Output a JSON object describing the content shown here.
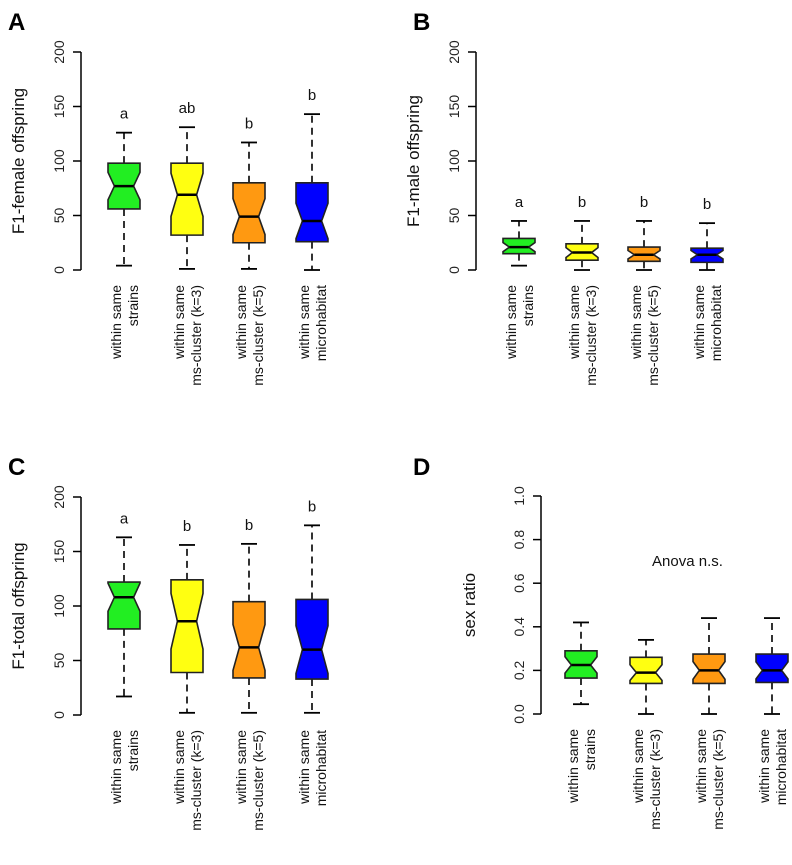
{
  "chart_data": [
    {
      "type": "boxplot",
      "panel": "A",
      "ylabel": "F1-female offspring",
      "ylim": [
        0,
        200
      ],
      "yticks": [
        "0",
        "50",
        "100",
        "150",
        "200"
      ],
      "categories": [
        [
          "within same",
          "strains"
        ],
        [
          "within same",
          "ms-cluster (k=3)"
        ],
        [
          "within same",
          "ms-cluster (k=5)"
        ],
        [
          "within same",
          "microhabitat"
        ]
      ],
      "colors": [
        "#22ee22",
        "#ffff11",
        "#ff9911",
        "#0000ff"
      ],
      "boxes": [
        {
          "min": 4,
          "q1": 56,
          "median": 77,
          "q3": 98,
          "max": 126,
          "letter": "a"
        },
        {
          "min": 1,
          "q1": 32,
          "median": 69,
          "q3": 98,
          "max": 131,
          "letter": "ab"
        },
        {
          "min": 1,
          "q1": 25,
          "median": 49,
          "q3": 80,
          "max": 117,
          "letter": "b"
        },
        {
          "min": 0,
          "q1": 26,
          "median": 45,
          "q3": 80,
          "max": 143,
          "letter": "b"
        }
      ]
    },
    {
      "type": "boxplot",
      "panel": "B",
      "ylabel": "F1-male offspring",
      "ylim": [
        0,
        200
      ],
      "yticks": [
        "0",
        "50",
        "100",
        "150",
        "200"
      ],
      "categories": [
        [
          "within same",
          "strains"
        ],
        [
          "within same",
          "ms-cluster (k=3)"
        ],
        [
          "within same",
          "ms-cluster (k=5)"
        ],
        [
          "within same",
          "microhabitat"
        ]
      ],
      "colors": [
        "#22ee22",
        "#ffff11",
        "#ff9911",
        "#0000ff"
      ],
      "boxes": [
        {
          "min": 4,
          "q1": 15,
          "median": 21,
          "q3": 29,
          "max": 45,
          "letter": "a"
        },
        {
          "min": 0,
          "q1": 9,
          "median": 16,
          "q3": 24,
          "max": 45,
          "letter": "b"
        },
        {
          "min": 0,
          "q1": 8,
          "median": 14,
          "q3": 21,
          "max": 45,
          "letter": "b"
        },
        {
          "min": 0,
          "q1": 7,
          "median": 14,
          "q3": 20,
          "max": 43,
          "letter": "b"
        }
      ]
    },
    {
      "type": "boxplot",
      "panel": "C",
      "ylabel": "F1-total offspring",
      "ylim": [
        0,
        200
      ],
      "yticks": [
        "0",
        "50",
        "100",
        "150",
        "200"
      ],
      "categories": [
        [
          "within same",
          "strains"
        ],
        [
          "within same",
          "ms-cluster (k=3)"
        ],
        [
          "within same",
          "ms-cluster (k=5)"
        ],
        [
          "within same",
          "microhabitat"
        ]
      ],
      "colors": [
        "#22ee22",
        "#ffff11",
        "#ff9911",
        "#0000ff"
      ],
      "boxes": [
        {
          "min": 17,
          "q1": 79,
          "median": 108,
          "q3": 122,
          "max": 163,
          "letter": "a"
        },
        {
          "min": 2,
          "q1": 39,
          "median": 86,
          "q3": 124,
          "max": 156,
          "letter": "b"
        },
        {
          "min": 2,
          "q1": 34,
          "median": 62,
          "q3": 104,
          "max": 157,
          "letter": "b"
        },
        {
          "min": 2,
          "q1": 33,
          "median": 60,
          "q3": 106,
          "max": 174,
          "letter": "b"
        }
      ]
    },
    {
      "type": "boxplot",
      "panel": "D",
      "ylabel": "sex ratio",
      "ylim": [
        0,
        1
      ],
      "yticks": [
        "0.0",
        "0.2",
        "0.4",
        "0.6",
        "0.8",
        "1.0"
      ],
      "annotation": "Anova n.s.",
      "categories": [
        [
          "within same",
          "strains"
        ],
        [
          "within same",
          "ms-cluster (k=3)"
        ],
        [
          "within same",
          "ms-cluster (k=5)"
        ],
        [
          "within same",
          "microhabitat"
        ]
      ],
      "colors": [
        "#22ee22",
        "#ffff11",
        "#ff9911",
        "#0000ff"
      ],
      "boxes": [
        {
          "min": 0.045,
          "q1": 0.165,
          "median": 0.225,
          "q3": 0.29,
          "max": 0.42,
          "letter": ""
        },
        {
          "min": 0,
          "q1": 0.14,
          "median": 0.19,
          "q3": 0.26,
          "max": 0.34,
          "letter": ""
        },
        {
          "min": 0,
          "q1": 0.14,
          "median": 0.2,
          "q3": 0.275,
          "max": 0.44,
          "letter": ""
        },
        {
          "min": 0,
          "q1": 0.145,
          "median": 0.2,
          "q3": 0.275,
          "max": 0.44,
          "letter": ""
        }
      ]
    }
  ]
}
